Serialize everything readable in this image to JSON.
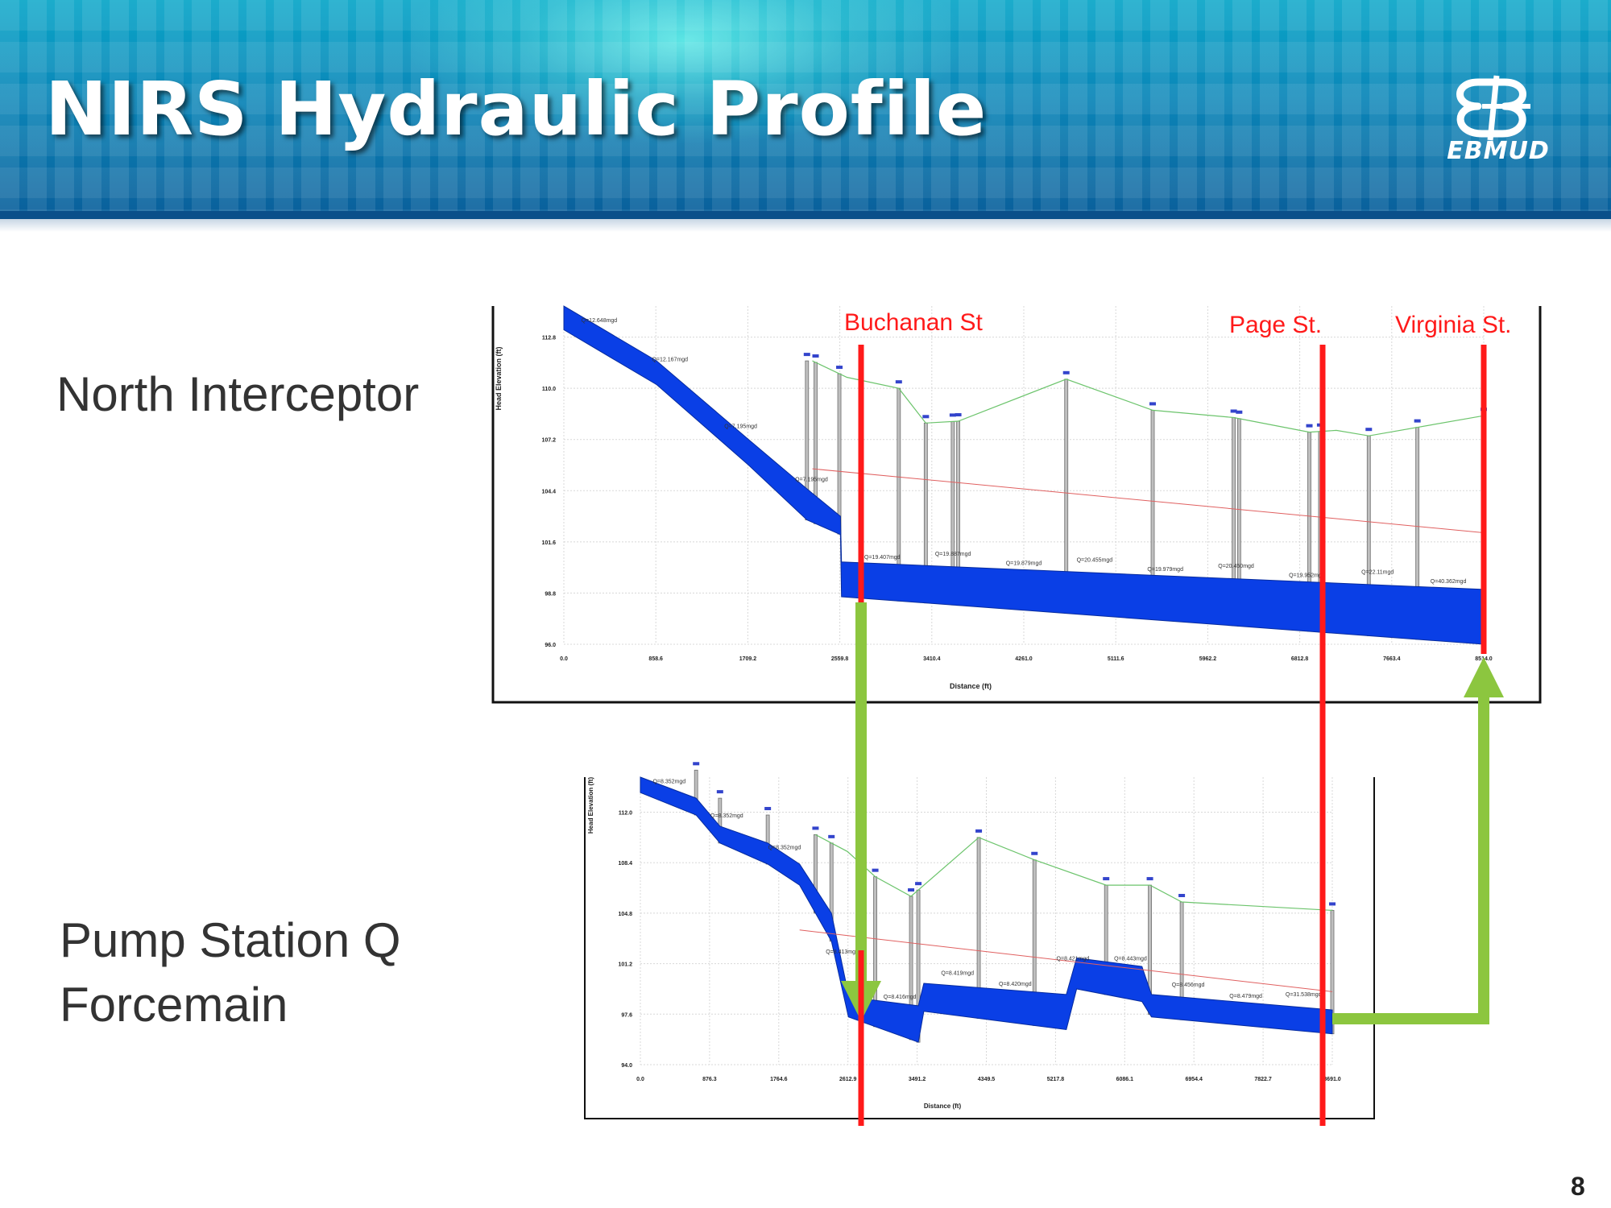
{
  "slide": {
    "title": "NIRS Hydraulic Profile",
    "logo_text": "EBMUD",
    "page_number": "8",
    "section_labels": [
      "North Interceptor",
      "Pump Station Q",
      "Forcemain"
    ]
  },
  "streets": [
    "Buchanan St",
    "Page St.",
    "Virginia St."
  ],
  "colors": {
    "street_line": "#ff1a1a",
    "arrow": "#8cc63f",
    "profile_fill": "#0a3fe6",
    "ground_line": "#6cc46c",
    "hgl_line": "#e06060",
    "header": "#0a86b8"
  },
  "chart_data": [
    {
      "type": "area",
      "name": "North Interceptor",
      "xlabel": "Distance (ft)",
      "ylabel": "Head Elevation (ft)",
      "x_ticks": [
        "0.0",
        "858.6",
        "1709.2",
        "2559.8",
        "3410.4",
        "4261.0",
        "5111.6",
        "5962.2",
        "6812.8",
        "7663.4",
        "8514.0"
      ],
      "y_ticks": [
        "96.0",
        "98.8",
        "101.6",
        "104.4",
        "107.2",
        "110.0",
        "112.8"
      ],
      "xlim": [
        0,
        8514
      ],
      "ylim": [
        96,
        114.5
      ],
      "pipe_top": [
        [
          0,
          114.5
        ],
        [
          858.6,
          111.5
        ],
        [
          1709.2,
          107.2
        ],
        [
          2250,
          104.5
        ],
        [
          2559.8,
          103.0
        ],
        [
          2570,
          100.5
        ],
        [
          8514,
          99.0
        ]
      ],
      "pipe_bottom": [
        [
          0,
          113.2
        ],
        [
          858.6,
          110.2
        ],
        [
          1709.2,
          105.8
        ],
        [
          2250,
          102.8
        ],
        [
          2559.8,
          102.0
        ],
        [
          2570,
          98.6
        ],
        [
          8514,
          96.0
        ]
      ],
      "ground_line": [
        [
          2300,
          111.5
        ],
        [
          2620,
          110.6
        ],
        [
          3100,
          110.0
        ],
        [
          3350,
          108.1
        ],
        [
          3650,
          108.2
        ],
        [
          4650,
          110.5
        ],
        [
          5450,
          108.8
        ],
        [
          6200,
          108.4
        ],
        [
          6900,
          107.6
        ],
        [
          7150,
          107.7
        ],
        [
          7450,
          107.4
        ],
        [
          8514,
          108.5
        ]
      ],
      "hgl_line": [
        [
          2300,
          105.6
        ],
        [
          8514,
          102.1
        ]
      ],
      "node_x": [
        2250,
        2330,
        2550,
        3100,
        3350,
        3600,
        3650,
        4650,
        5450,
        6200,
        6250,
        6900,
        7000,
        7450,
        7900,
        8514
      ],
      "annotations": [
        "Q=12.648mgd",
        "Q=12.167mgd",
        "Q=7.195mgd",
        "Q=7.195mgd",
        "Q=19.407mgd",
        "Q=19.887mgd",
        "Q=19.879mgd",
        "Q=20.455mgd",
        "Q=19.979mgd",
        "Q=20.450mgd",
        "Q=19.952mgd",
        "Q=22.11mgd",
        "Q=40.362mgd"
      ]
    },
    {
      "type": "area",
      "name": "Pump Station Q Forcemain",
      "xlabel": "Distance (ft)",
      "ylabel": "Head Elevation (ft)",
      "x_ticks": [
        "0.0",
        "876.3",
        "1764.6",
        "2612.9",
        "3491.2",
        "4349.5",
        "5217.8",
        "6086.1",
        "6954.4",
        "7822.7",
        "8691.0"
      ],
      "y_ticks": [
        "94.0",
        "97.6",
        "101.2",
        "104.8",
        "108.4",
        "112.0"
      ],
      "xlim": [
        0,
        8691
      ],
      "ylim": [
        94,
        114.5
      ],
      "pipe_top": [
        [
          0,
          114.5
        ],
        [
          700,
          113.0
        ],
        [
          1000,
          111.0
        ],
        [
          1600,
          109.8
        ],
        [
          2000,
          108.3
        ],
        [
          2400,
          104.8
        ],
        [
          2612.9,
          99.0
        ],
        [
          2800,
          98.7
        ],
        [
          3491.2,
          98.2
        ],
        [
          3560,
          99.8
        ],
        [
          5350,
          99.0
        ],
        [
          5480,
          101.6
        ],
        [
          6300,
          101.0
        ],
        [
          6420,
          99.0
        ],
        [
          8691,
          97.9
        ]
      ],
      "pipe_bottom": [
        [
          0,
          113.4
        ],
        [
          700,
          111.8
        ],
        [
          1000,
          109.8
        ],
        [
          1600,
          108.3
        ],
        [
          2000,
          106.8
        ],
        [
          2400,
          102.8
        ],
        [
          2612.9,
          97.4
        ],
        [
          3491.2,
          95.6
        ],
        [
          3560,
          97.8
        ],
        [
          5350,
          96.5
        ],
        [
          5480,
          99.4
        ],
        [
          6300,
          98.5
        ],
        [
          6420,
          97.4
        ],
        [
          8691,
          96.2
        ]
      ],
      "ground_line": [
        [
          2200,
          110.4
        ],
        [
          2600,
          109.2
        ],
        [
          2950,
          107.4
        ],
        [
          3400,
          106.0
        ],
        [
          4250,
          110.2
        ],
        [
          4950,
          108.6
        ],
        [
          5850,
          106.8
        ],
        [
          6400,
          106.8
        ],
        [
          6800,
          105.6
        ],
        [
          8691,
          105.0
        ]
      ],
      "hgl_line": [
        [
          2000,
          103.6
        ],
        [
          8691,
          99.2
        ]
      ],
      "node_x": [
        700,
        1000,
        1600,
        2200,
        2400,
        2950,
        3400,
        3491.2,
        4250,
        4950,
        5850,
        6400,
        6800,
        8691
      ],
      "annotations": [
        "Q=8.352mgd",
        "Q=8.352mgd",
        "Q=8.352mgd",
        "Q=8.413mgd",
        "Q=8.416mgd",
        "Q=8.419mgd",
        "Q=8.420mgd",
        "Q=8.421mgd",
        "Q=8.443mgd",
        "Q=8.456mgd",
        "Q=8.479mgd",
        "Q=31.538mgd"
      ]
    }
  ]
}
